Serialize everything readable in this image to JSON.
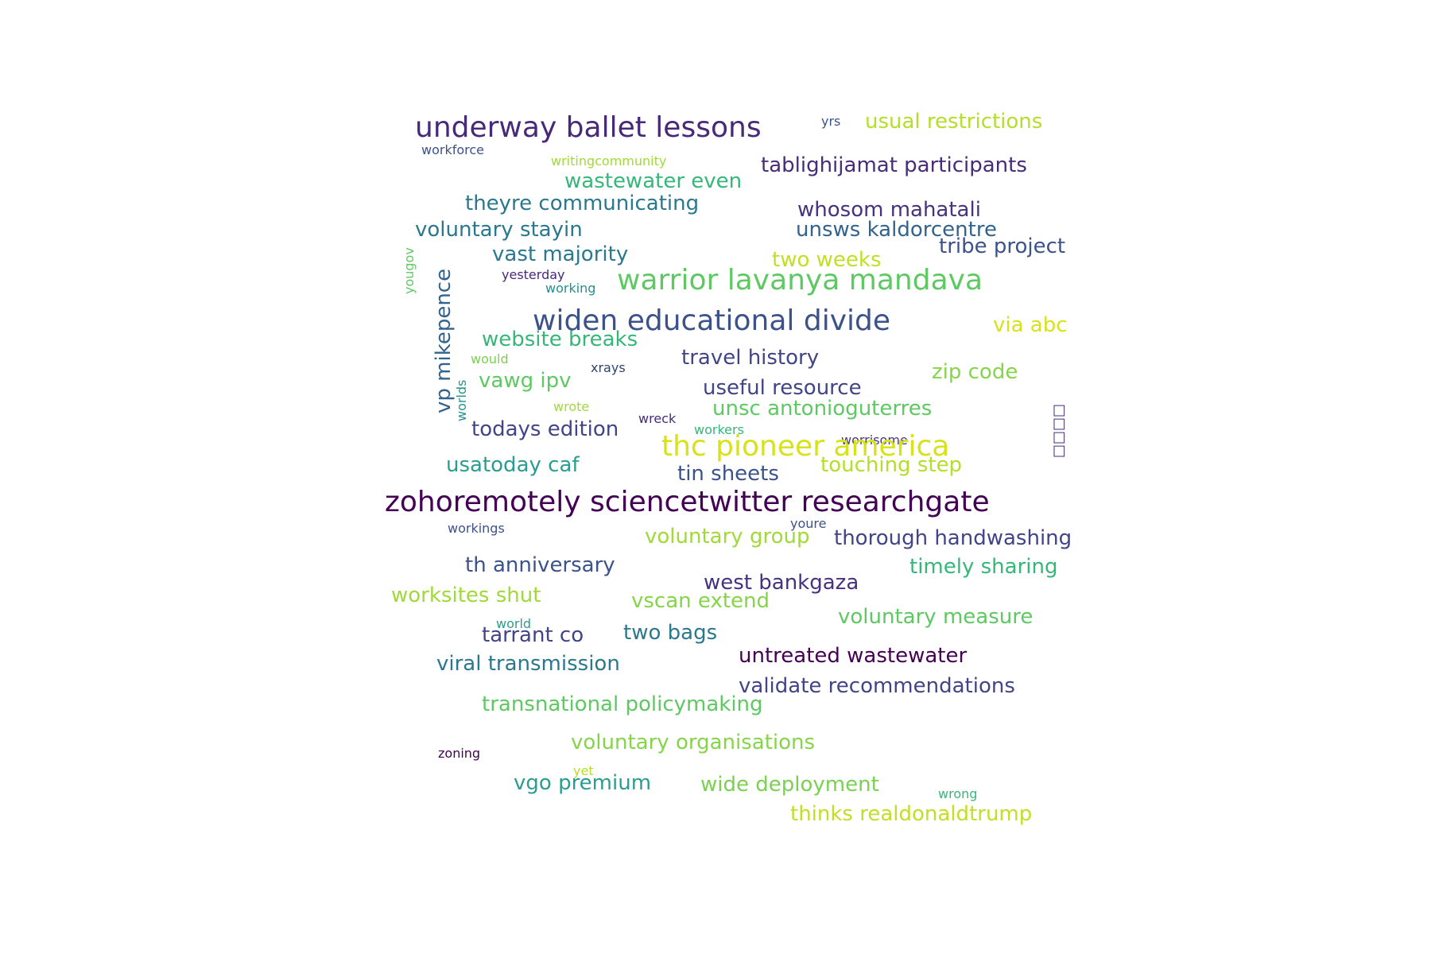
{
  "words": [
    {
      "text": "underway ballet lessons",
      "color": "#482878"
    },
    {
      "text": "yrs",
      "color": "#3b528b"
    },
    {
      "text": "usual restrictions",
      "color": "#b5de2b"
    },
    {
      "text": "workforce",
      "color": "#3b528b"
    },
    {
      "text": "writingcommunity",
      "color": "#a0da39"
    },
    {
      "text": "tablighijamat participants",
      "color": "#472c7a"
    },
    {
      "text": "wastewater even",
      "color": "#35b779"
    },
    {
      "text": "theyre communicating",
      "color": "#2a788e"
    },
    {
      "text": "whosom mahatali",
      "color": "#46327e"
    },
    {
      "text": "voluntary stayin",
      "color": "#2a788e"
    },
    {
      "text": "unsws kaldorcentre",
      "color": "#33638d"
    },
    {
      "text": "tribe project",
      "color": "#3b528b"
    },
    {
      "text": "yougov",
      "color": "#5ec962"
    },
    {
      "text": "vast majority",
      "color": "#2a788e"
    },
    {
      "text": "two weeks",
      "color": "#c2df23"
    },
    {
      "text": "yesterday",
      "color": "#482878"
    },
    {
      "text": "working",
      "color": "#21918c"
    },
    {
      "text": "warrior lavanya mandava",
      "color": "#5ec962"
    },
    {
      "text": "vp mikepence",
      "color": "#33638d"
    },
    {
      "text": "widen educational divide",
      "color": "#3b528b"
    },
    {
      "text": "via abc",
      "color": "#d8e219"
    },
    {
      "text": "website breaks",
      "color": "#35b779"
    },
    {
      "text": "would",
      "color": "#7ad151"
    },
    {
      "text": "travel history",
      "color": "#414487"
    },
    {
      "text": "xrays",
      "color": "#31446b"
    },
    {
      "text": "zip code",
      "color": "#86d549"
    },
    {
      "text": "worlds",
      "color": "#21918c"
    },
    {
      "text": "vawg ipv",
      "color": "#5ec962"
    },
    {
      "text": "useful resource",
      "color": "#414487"
    },
    {
      "text": "wrote",
      "color": "#a0da39"
    },
    {
      "text": "wreck",
      "color": "#472c7a"
    },
    {
      "text": "unsc antonioguterres",
      "color": "#5ec962"
    },
    {
      "text": "workers",
      "color": "#35b779"
    },
    {
      "text": "todays edition",
      "color": "#414487"
    },
    {
      "text": "worrisome",
      "color": "#443983"
    },
    {
      "text": "thc pioneer america",
      "color": "#d8e219"
    },
    {
      "text": "usatoday caf",
      "color": "#2a9d8f"
    },
    {
      "text": "tin sheets",
      "color": "#3b528b"
    },
    {
      "text": "touching step",
      "color": "#b5de2b"
    },
    {
      "text": "zohoremotely sciencetwitter researchgate",
      "color": "#440154"
    },
    {
      "text": "workings",
      "color": "#3b528b"
    },
    {
      "text": "youre",
      "color": "#3b528b"
    },
    {
      "text": "voluntary group",
      "color": "#a0da39"
    },
    {
      "text": "thorough handwashing",
      "color": "#414487"
    },
    {
      "text": "th anniversary",
      "color": "#3b528b"
    },
    {
      "text": "timely sharing",
      "color": "#35b779"
    },
    {
      "text": "west bankgaza",
      "color": "#46327e"
    },
    {
      "text": "worksites shut",
      "color": "#a0da39"
    },
    {
      "text": "vscan extend",
      "color": "#86d549"
    },
    {
      "text": "world",
      "color": "#2a9d8f"
    },
    {
      "text": "voluntary measure",
      "color": "#5ec962"
    },
    {
      "text": "tarrant co",
      "color": "#414487"
    },
    {
      "text": "two bags",
      "color": "#2a788e"
    },
    {
      "text": "untreated wastewater",
      "color": "#440154"
    },
    {
      "text": "viral transmission",
      "color": "#2a788e"
    },
    {
      "text": "validate recommendations",
      "color": "#414487"
    },
    {
      "text": "transnational policymaking",
      "color": "#5ec962"
    },
    {
      "text": "voluntary organisations",
      "color": "#86d549"
    },
    {
      "text": "zoning",
      "color": "#440154"
    },
    {
      "text": "yet",
      "color": "#b5de2b"
    },
    {
      "text": "vgo premium",
      "color": "#2a9d8f"
    },
    {
      "text": "wide deployment",
      "color": "#7ad151"
    },
    {
      "text": "wrong",
      "color": "#35b779"
    },
    {
      "text": "thinks realdonaldtrump",
      "color": "#c2df23"
    },
    {
      "text": "□□□□",
      "color": "#472c7a"
    }
  ]
}
